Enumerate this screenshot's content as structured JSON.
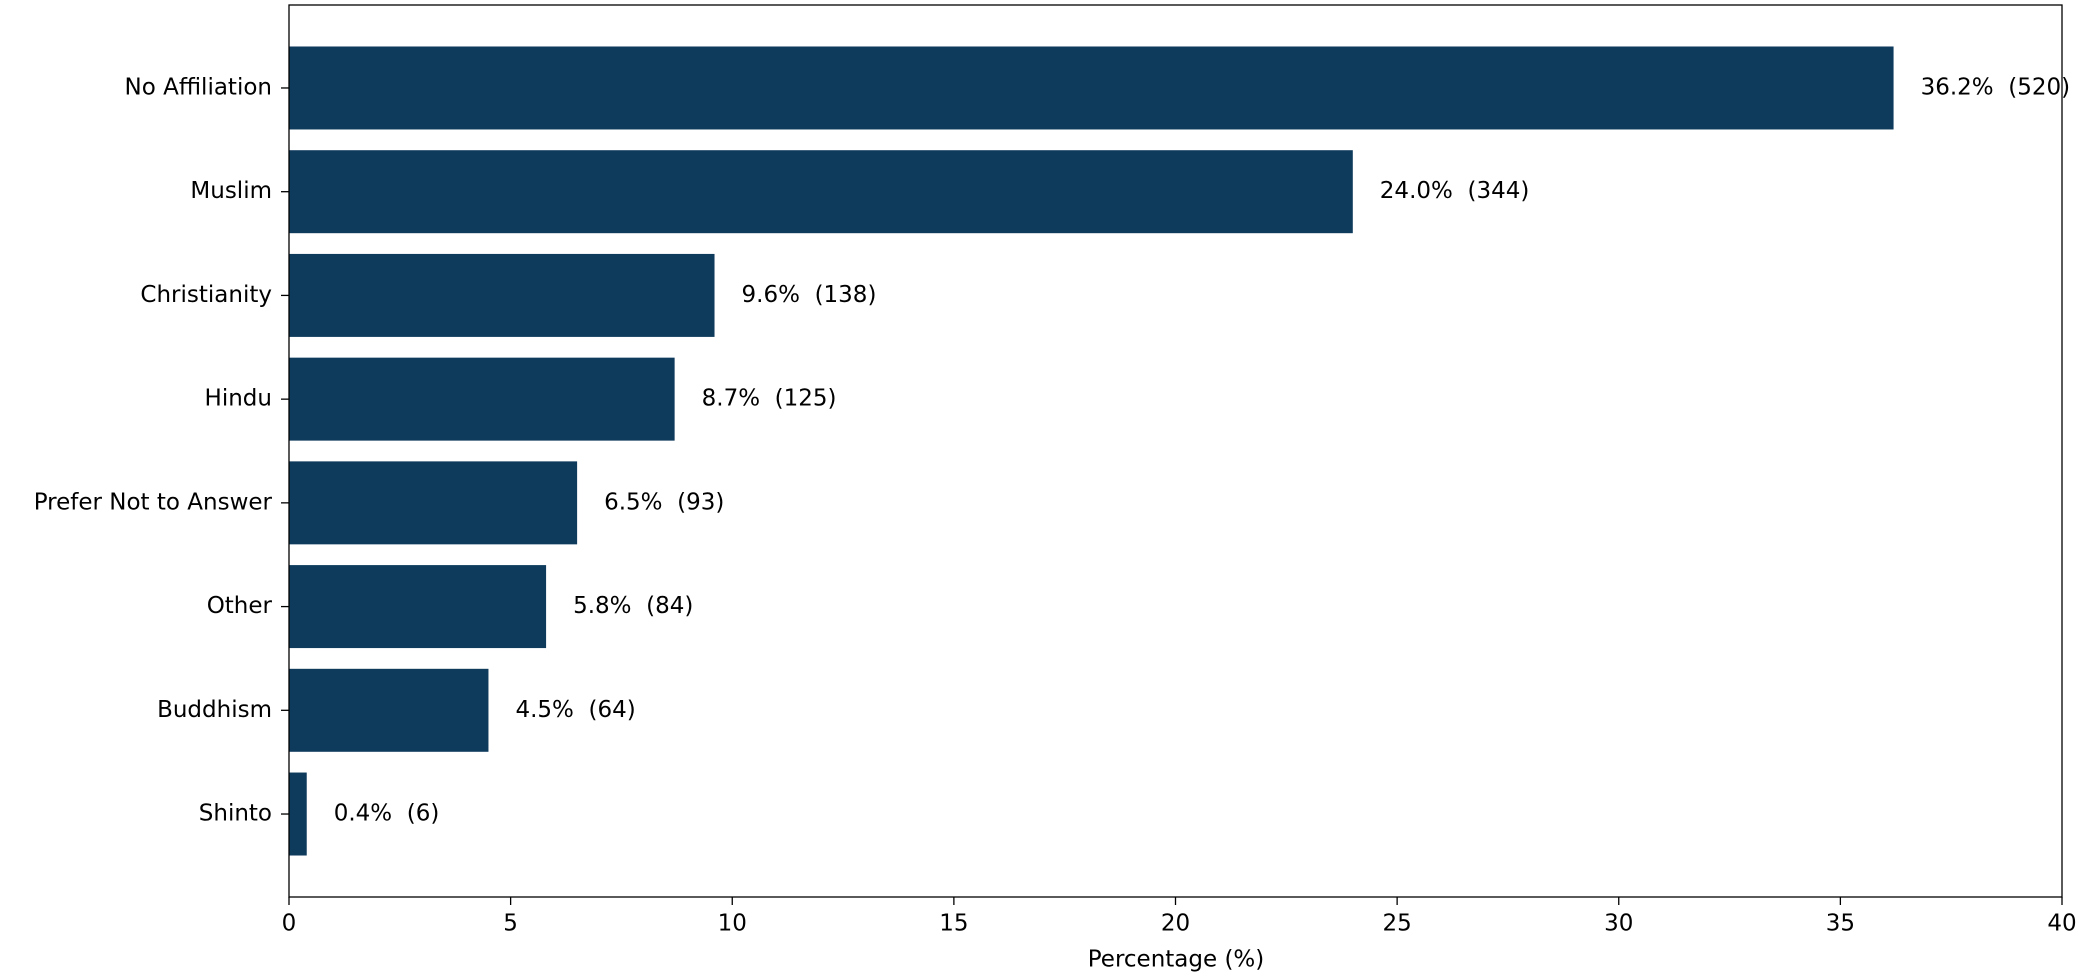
{
  "chart_data": {
    "type": "barh",
    "categories": [
      "No Affiliation",
      "Muslim",
      "Christianity",
      "Hindu",
      "Prefer Not to Answer",
      "Other",
      "Buddhism",
      "Shinto"
    ],
    "values": [
      36.2,
      24.0,
      9.6,
      8.7,
      6.5,
      5.8,
      4.5,
      0.4
    ],
    "value_labels": [
      "36.2%  (520)",
      "24.0%  (344)",
      "9.6%  (138)",
      "8.7%  (125)",
      "6.5%  (93)",
      "5.8%  (84)",
      "4.5%  (64)",
      "0.4%  (6)"
    ],
    "color": "#0e3a5c",
    "xlabel": "Percentage (%)",
    "xlim": [
      0,
      40
    ],
    "xticks": [
      0,
      5,
      10,
      15,
      20,
      25,
      30,
      35,
      40
    ],
    "grid": false
  }
}
